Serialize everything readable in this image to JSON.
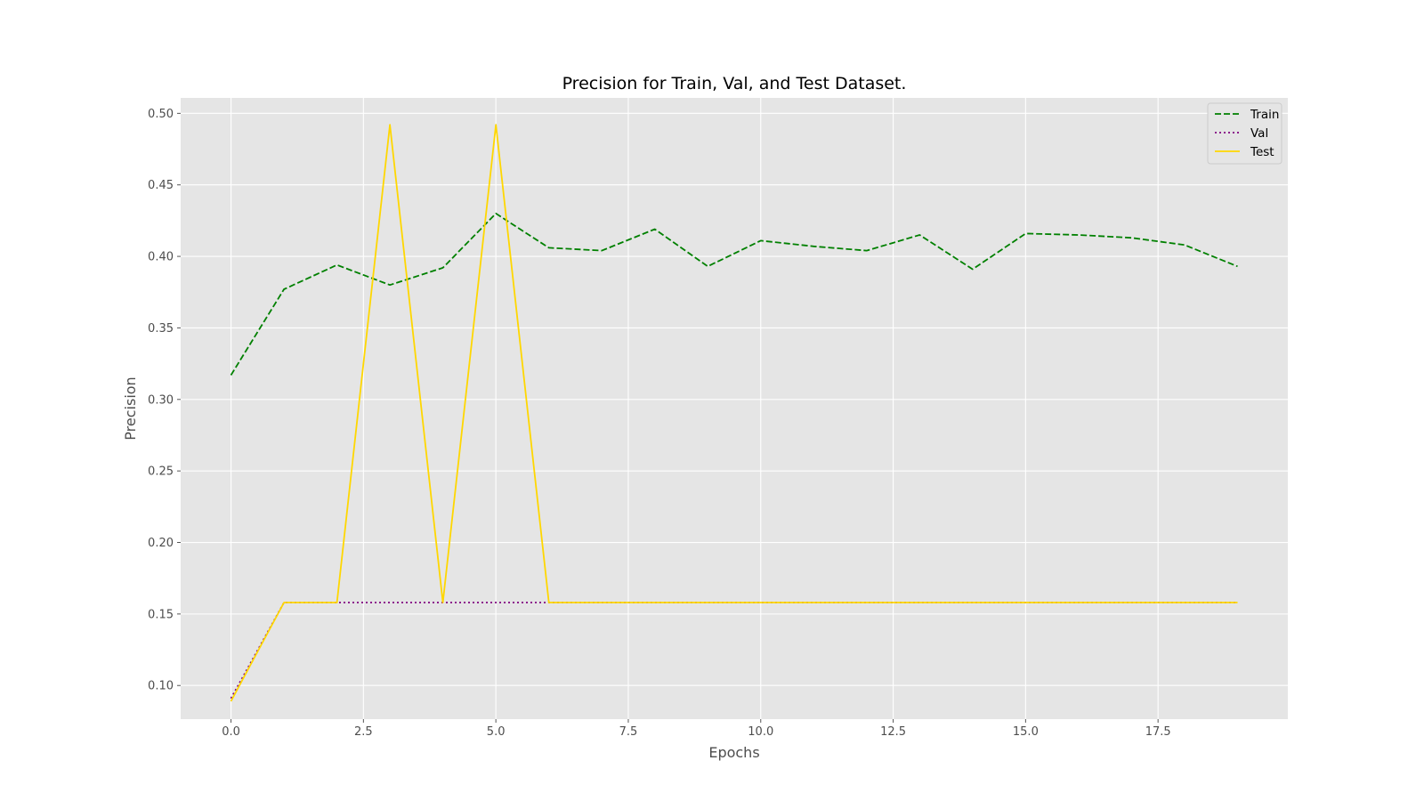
{
  "chart_data": {
    "type": "line",
    "title": "Precision for Train, Val, and Test Dataset.",
    "xlabel": "Epochs",
    "ylabel": "Precision",
    "xlim": [
      -0.95,
      19.95
    ],
    "ylim": [
      0.0765,
      0.5108
    ],
    "x_ticks": [
      0.0,
      2.5,
      5.0,
      7.5,
      10.0,
      12.5,
      15.0,
      17.5
    ],
    "x_tick_labels": [
      "0.0",
      "2.5",
      "5.0",
      "7.5",
      "10.0",
      "12.5",
      "15.0",
      "17.5"
    ],
    "y_ticks": [
      0.1,
      0.15,
      0.2,
      0.25,
      0.3,
      0.35,
      0.4,
      0.45,
      0.5
    ],
    "y_tick_labels": [
      "0.10",
      "0.15",
      "0.20",
      "0.25",
      "0.30",
      "0.35",
      "0.40",
      "0.45",
      "0.50"
    ],
    "grid": true,
    "legend_position": "top-right",
    "x": [
      0,
      1,
      2,
      3,
      4,
      5,
      6,
      7,
      8,
      9,
      10,
      11,
      12,
      13,
      14,
      15,
      16,
      17,
      18,
      19
    ],
    "series": [
      {
        "name": "Train",
        "color": "#008000",
        "style": "dashed",
        "values": [
          0.317,
          0.377,
          0.394,
          0.38,
          0.392,
          0.43,
          0.406,
          0.404,
          0.419,
          0.393,
          0.411,
          0.407,
          0.404,
          0.415,
          0.391,
          0.416,
          0.415,
          0.413,
          0.408,
          0.393
        ]
      },
      {
        "name": "Val",
        "color": "#800080",
        "style": "dotted",
        "values": [
          0.091,
          0.158,
          0.158,
          0.158,
          0.158,
          0.158,
          0.158,
          0.158,
          0.158,
          0.158,
          0.158,
          0.158,
          0.158,
          0.158,
          0.158,
          0.158,
          0.158,
          0.158,
          0.158,
          0.158
        ]
      },
      {
        "name": "Test",
        "color": "#FFD700",
        "style": "solid",
        "values": [
          0.089,
          0.158,
          0.158,
          0.492,
          0.158,
          0.492,
          0.158,
          0.158,
          0.158,
          0.158,
          0.158,
          0.158,
          0.158,
          0.158,
          0.158,
          0.158,
          0.158,
          0.158,
          0.158,
          0.158
        ]
      }
    ]
  }
}
